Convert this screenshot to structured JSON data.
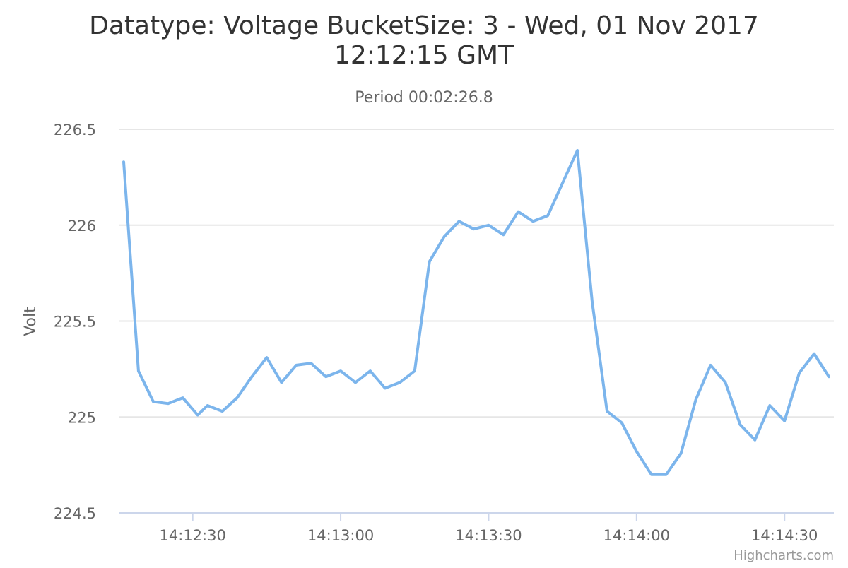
{
  "chart_data": {
    "type": "line",
    "title_line1": "Datatype: Voltage BucketSize: 3 - Wed, 01 Nov 2017",
    "title_line2": "12:12:15 GMT",
    "subtitle": "Period 00:02:26.8",
    "ylabel": "Volt",
    "xlabel": "",
    "ylim": [
      224.5,
      226.5
    ],
    "y_ticks": [
      224.5,
      225,
      225.5,
      226,
      226.5
    ],
    "y_tick_labels": [
      "224.5",
      "225",
      "225.5",
      "226",
      "226.5"
    ],
    "x_range": [
      "14:12:15",
      "14:14:40"
    ],
    "x_ticks": [
      "14:12:30",
      "14:13:00",
      "14:13:30",
      "14:14:00",
      "14:14:30"
    ],
    "grid": true,
    "legend": "none",
    "credits": "Highcharts.com",
    "color": "#7cb5ec",
    "series": [
      {
        "x": [
          "14:12:16",
          "14:12:19",
          "14:12:22",
          "14:12:25",
          "14:12:28",
          "14:12:31",
          "14:12:33",
          "14:12:36",
          "14:12:39",
          "14:12:42",
          "14:12:45",
          "14:12:48",
          "14:12:51",
          "14:12:54",
          "14:12:57",
          "14:13:00",
          "14:13:03",
          "14:13:06",
          "14:13:09",
          "14:13:12",
          "14:13:15",
          "14:13:18",
          "14:13:21",
          "14:13:24",
          "14:13:27",
          "14:13:30",
          "14:13:33",
          "14:13:36",
          "14:13:39",
          "14:13:42",
          "14:13:45",
          "14:13:48",
          "14:13:51",
          "14:13:54",
          "14:13:57",
          "14:14:00",
          "14:14:03",
          "14:14:06",
          "14:14:09",
          "14:14:12",
          "14:14:15",
          "14:14:18",
          "14:14:21",
          "14:14:24",
          "14:14:27",
          "14:14:30",
          "14:14:33",
          "14:14:36",
          "14:14:39"
        ],
        "values": [
          226.33,
          225.24,
          225.08,
          225.07,
          225.1,
          225.01,
          225.06,
          225.03,
          225.1,
          225.21,
          225.31,
          225.18,
          225.27,
          225.28,
          225.21,
          225.24,
          225.18,
          225.24,
          225.15,
          225.18,
          225.24,
          225.81,
          225.94,
          226.02,
          225.98,
          226.0,
          225.95,
          226.07,
          226.02,
          226.05,
          226.22,
          226.39,
          225.6,
          225.03,
          224.97,
          224.82,
          224.7,
          224.7,
          224.81,
          225.09,
          225.27,
          225.18,
          224.96,
          224.88,
          225.06,
          224.98,
          225.23,
          225.33,
          225.21
        ]
      }
    ]
  }
}
